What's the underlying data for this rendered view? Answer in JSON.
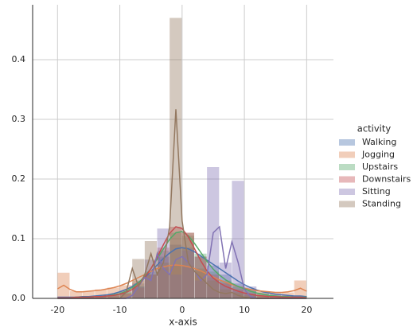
{
  "chart_data": {
    "type": "hist_kde",
    "xlabel": "x-axis",
    "legend_title": "activity",
    "legend_position": "right",
    "grid": true,
    "xlim": [
      -24,
      24.3
    ],
    "ylim": [
      0,
      0.492
    ],
    "xticks": [
      -20,
      -10,
      0,
      10,
      20
    ],
    "yticks": [
      {
        "value": 0,
        "label": "0.0"
      },
      0.1,
      0.2,
      0.3,
      0.4
    ],
    "bins": [
      -20,
      -18,
      -16,
      -14,
      -12,
      -10,
      -8,
      -6,
      -4,
      -2,
      0,
      2,
      4,
      6,
      8,
      10,
      12,
      14,
      16,
      18,
      20
    ],
    "kde_x": [
      -20,
      -19,
      -18,
      -17,
      -16,
      -15,
      -14,
      -13,
      -12,
      -11,
      -10,
      -9,
      -8,
      -7,
      -6,
      -5,
      -4,
      -3,
      -2,
      -1,
      0,
      1,
      2,
      3,
      4,
      5,
      6,
      7,
      8,
      9,
      10,
      11,
      12,
      13,
      14,
      15,
      16,
      17,
      18,
      19,
      20
    ],
    "series": [
      {
        "name": "Walking",
        "color": "#4c72b0",
        "hist": [
          0.002,
          0.002,
          0.003,
          0.004,
          0.007,
          0.013,
          0.025,
          0.045,
          0.07,
          0.09,
          0.085,
          0.07,
          0.055,
          0.04,
          0.025,
          0.015,
          0.01,
          0.007,
          0.005,
          0.004
        ],
        "kde": [
          0.002,
          0.002,
          0.002,
          0.002,
          0.003,
          0.003,
          0.004,
          0.005,
          0.006,
          0.008,
          0.011,
          0.015,
          0.02,
          0.027,
          0.035,
          0.045,
          0.056,
          0.067,
          0.076,
          0.083,
          0.085,
          0.083,
          0.078,
          0.071,
          0.064,
          0.057,
          0.05,
          0.043,
          0.036,
          0.029,
          0.023,
          0.018,
          0.014,
          0.011,
          0.009,
          0.007,
          0.006,
          0.005,
          0.004,
          0.004,
          0.003
        ]
      },
      {
        "name": "Jogging",
        "color": "#dd8452",
        "hist": [
          0.043,
          0.012,
          0.012,
          0.015,
          0.018,
          0.022,
          0.03,
          0.04,
          0.05,
          0.055,
          0.055,
          0.045,
          0.035,
          0.027,
          0.02,
          0.015,
          0.012,
          0.01,
          0.01,
          0.03
        ],
        "kde": [
          0.016,
          0.022,
          0.015,
          0.011,
          0.011,
          0.012,
          0.013,
          0.014,
          0.016,
          0.018,
          0.021,
          0.025,
          0.03,
          0.035,
          0.04,
          0.045,
          0.05,
          0.053,
          0.055,
          0.056,
          0.055,
          0.053,
          0.05,
          0.046,
          0.041,
          0.036,
          0.031,
          0.027,
          0.023,
          0.02,
          0.017,
          0.015,
          0.013,
          0.012,
          0.011,
          0.01,
          0.01,
          0.011,
          0.013,
          0.017,
          0.012
        ]
      },
      {
        "name": "Upstairs",
        "color": "#55a868",
        "hist": [
          0.002,
          0.002,
          0.002,
          0.003,
          0.005,
          0.01,
          0.02,
          0.04,
          0.08,
          0.11,
          0.105,
          0.075,
          0.045,
          0.03,
          0.02,
          0.012,
          0.007,
          0.004,
          0.003,
          0.002
        ],
        "kde": [
          0.001,
          0.001,
          0.001,
          0.002,
          0.002,
          0.002,
          0.003,
          0.003,
          0.004,
          0.006,
          0.008,
          0.012,
          0.018,
          0.026,
          0.037,
          0.05,
          0.066,
          0.083,
          0.099,
          0.11,
          0.112,
          0.105,
          0.092,
          0.077,
          0.062,
          0.049,
          0.039,
          0.031,
          0.025,
          0.02,
          0.016,
          0.012,
          0.009,
          0.007,
          0.005,
          0.004,
          0.003,
          0.003,
          0.002,
          0.002,
          0.002
        ]
      },
      {
        "name": "Downstairs",
        "color": "#c44e52",
        "hist": [
          0.002,
          0.002,
          0.002,
          0.003,
          0.005,
          0.008,
          0.018,
          0.04,
          0.085,
          0.12,
          0.11,
          0.07,
          0.04,
          0.025,
          0.015,
          0.008,
          0.005,
          0.003,
          0.002,
          0.002
        ],
        "kde": [
          0.001,
          0.001,
          0.001,
          0.002,
          0.002,
          0.002,
          0.003,
          0.003,
          0.004,
          0.005,
          0.007,
          0.01,
          0.015,
          0.023,
          0.035,
          0.05,
          0.069,
          0.09,
          0.109,
          0.12,
          0.117,
          0.103,
          0.083,
          0.063,
          0.046,
          0.034,
          0.026,
          0.02,
          0.016,
          0.012,
          0.009,
          0.007,
          0.005,
          0.004,
          0.003,
          0.003,
          0.002,
          0.002,
          0.002,
          0.002,
          0.001
        ]
      },
      {
        "name": "Sitting",
        "color": "#8172b3",
        "hist": [
          0,
          0,
          0,
          0,
          0,
          0,
          0.02,
          0.065,
          0.117,
          0.04,
          0.08,
          0.03,
          0.22,
          0.06,
          0.197,
          0.02,
          0,
          0,
          0,
          0
        ],
        "kde": [
          0,
          0,
          0,
          0,
          0,
          0,
          0,
          0,
          0,
          0,
          0,
          0,
          0.005,
          0.02,
          0.035,
          0.03,
          0.075,
          0.05,
          0.04,
          0.065,
          0.07,
          0.06,
          0.045,
          0.03,
          0.04,
          0.11,
          0.12,
          0.05,
          0.095,
          0.06,
          0.015,
          0.003,
          0,
          0,
          0,
          0,
          0,
          0,
          0,
          0,
          0
        ]
      },
      {
        "name": "Standing",
        "color": "#937860",
        "hist": [
          0,
          0,
          0,
          0,
          0,
          0,
          0.066,
          0.096,
          0.06,
          0.47,
          0.11,
          0.05,
          0.03,
          0.015,
          0.01,
          0.005,
          0,
          0,
          0,
          0
        ],
        "kde": [
          0,
          0,
          0,
          0,
          0,
          0,
          0,
          0,
          0,
          0,
          0,
          0.01,
          0.05,
          0.02,
          0.04,
          0.075,
          0.04,
          0.06,
          0.12,
          0.317,
          0.13,
          0.06,
          0.045,
          0.035,
          0.025,
          0.015,
          0.01,
          0.008,
          0.01,
          0.005,
          0.002,
          0,
          0,
          0,
          0,
          0,
          0,
          0,
          0,
          0,
          0
        ]
      }
    ]
  }
}
